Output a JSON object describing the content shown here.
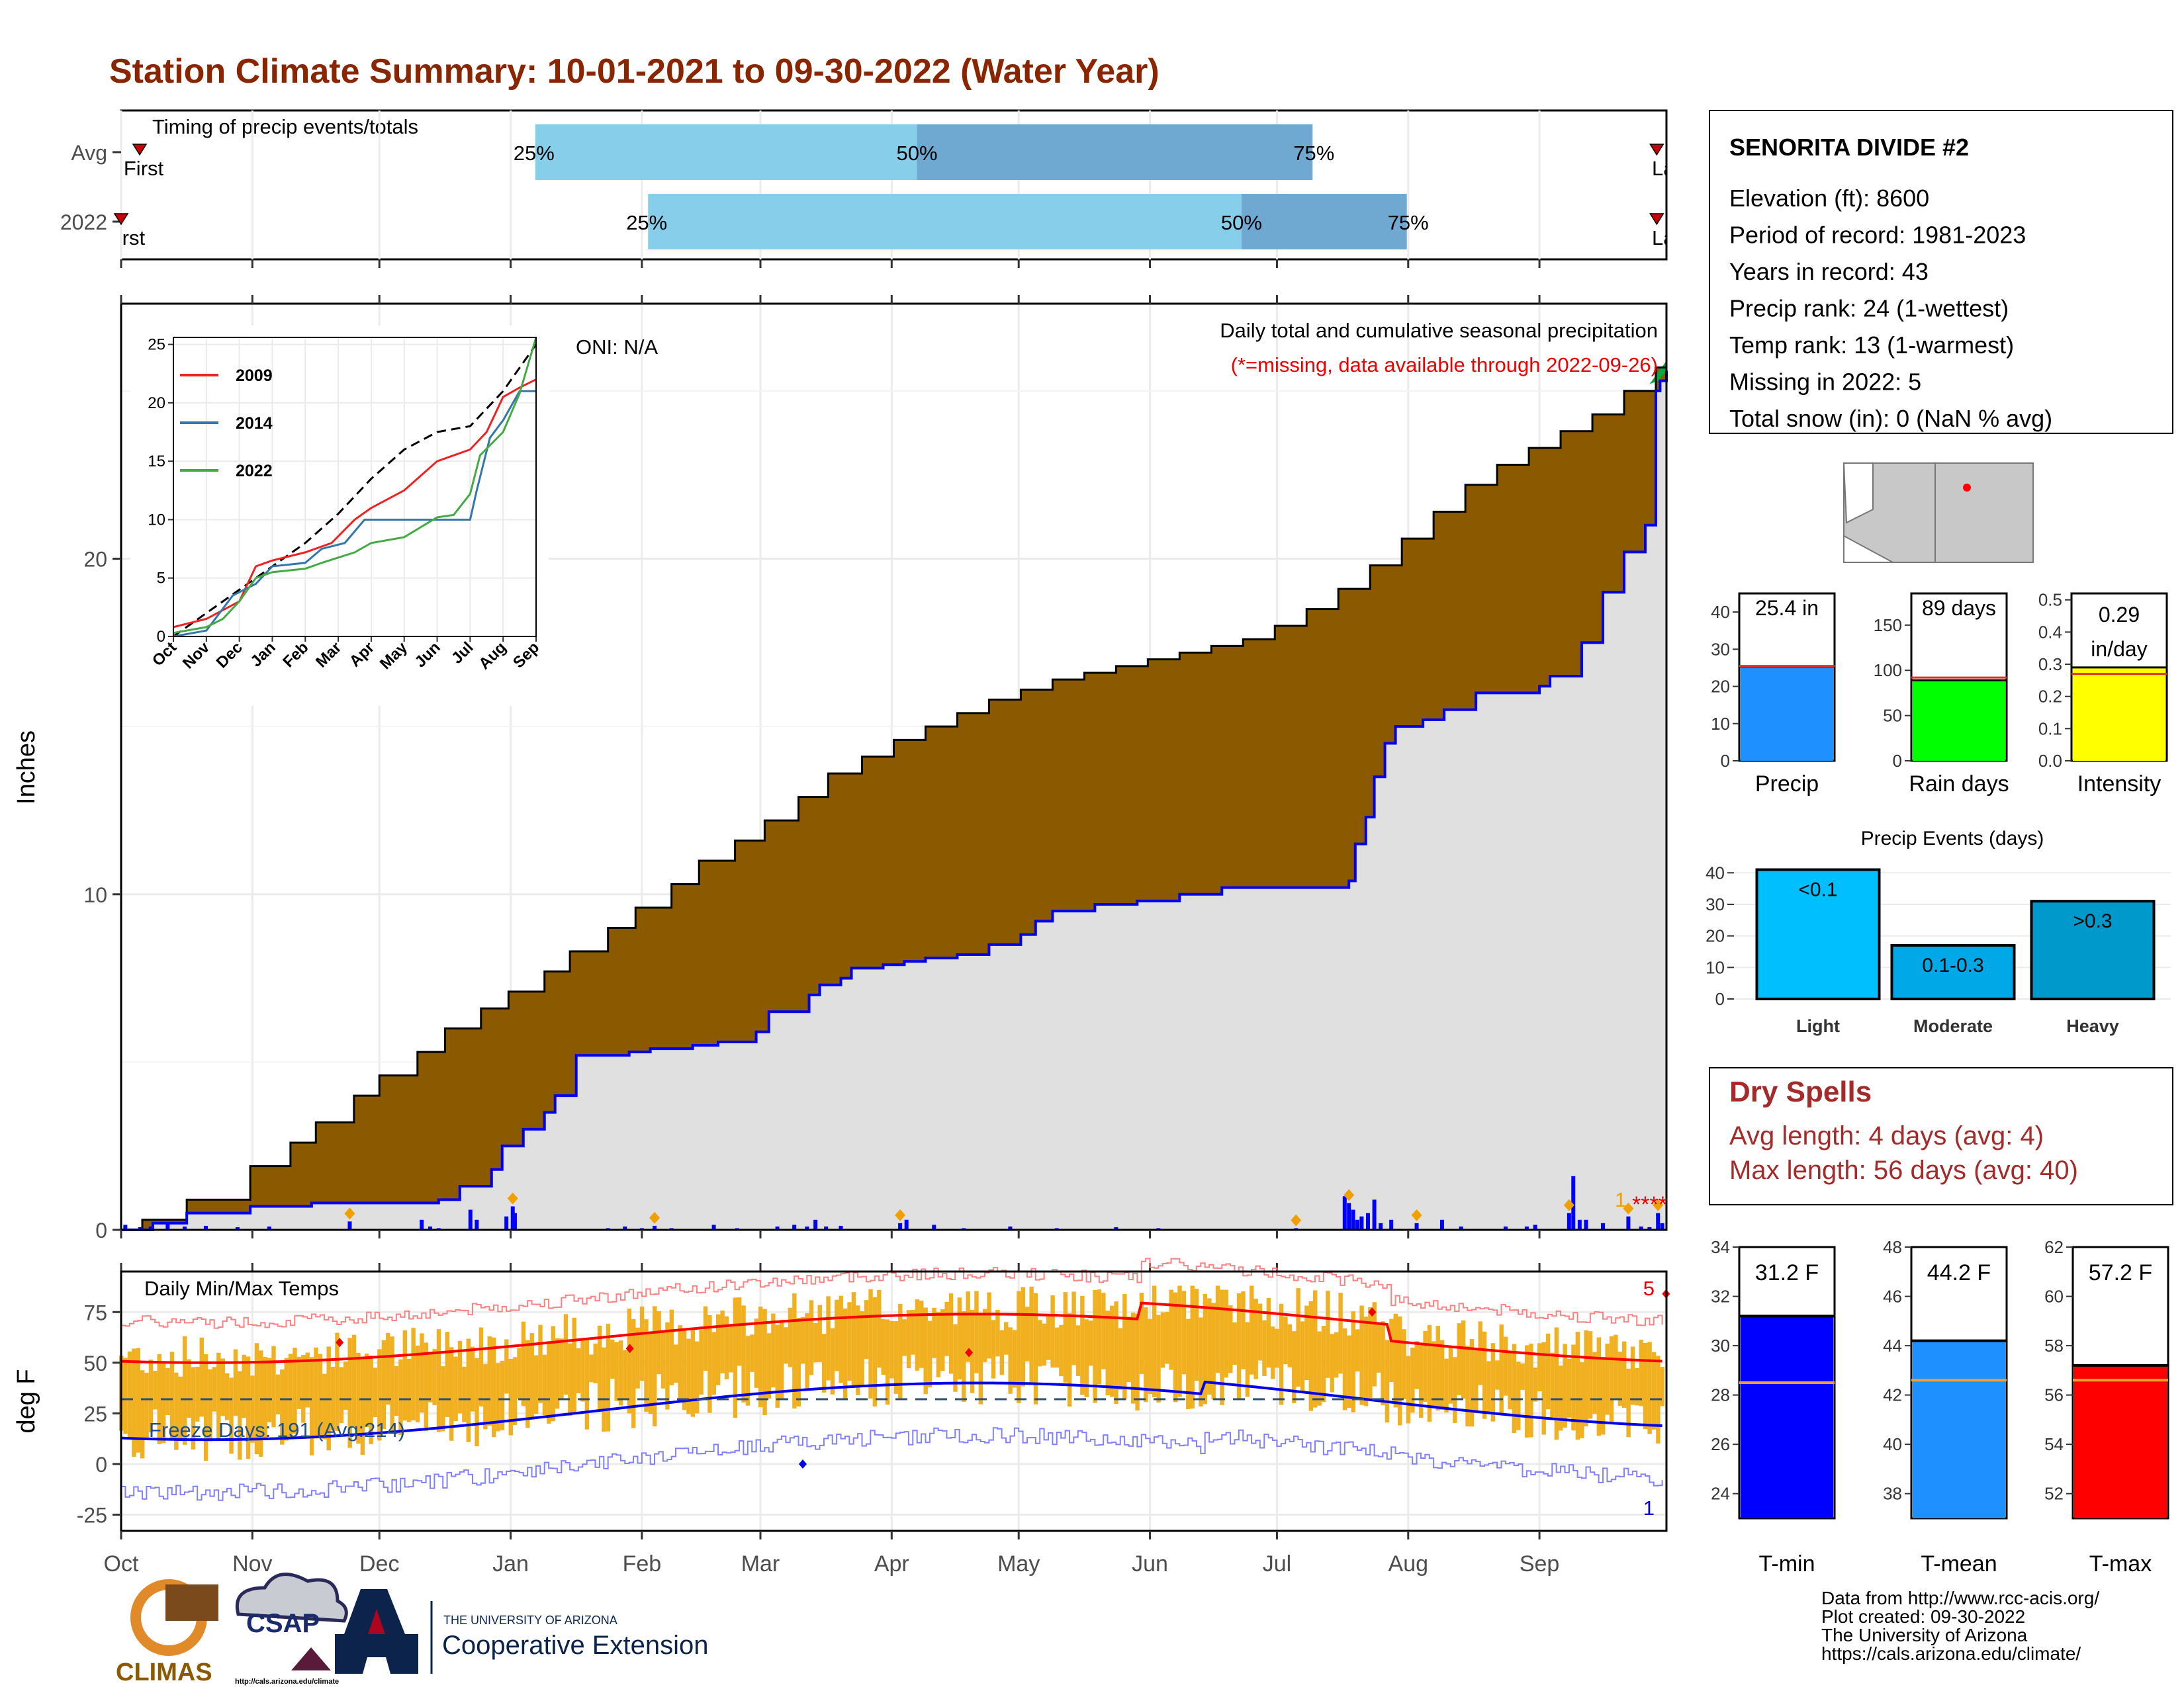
{
  "title": "Station Climate Summary: 10-01-2021 to 09-30-2022 (Water Year)",
  "colors": {
    "title": "#8b2500",
    "cum_avg": "#8b5a00",
    "cum_year": "#0000ee",
    "bg_fill": "#e0e0e0",
    "tmin": "#0000ff",
    "tmean": "#1e90ff",
    "tmax": "#ff0000",
    "precip": "#1e90ff",
    "raindays": "#00ff00",
    "intensity": "#ffff00",
    "light": "#00bfff",
    "moderate": "#00a7ee",
    "heavy": "#0099cc",
    "temp_bar": "#f0b020",
    "dry": "#a52a2a"
  },
  "timing": {
    "label": "Timing of precip events/totals",
    "rows": [
      {
        "name": "Avg",
        "first_label": "First",
        "last_label": "Last",
        "p25": "25%",
        "p50": "50%",
        "p75": "75%",
        "q25": 0.268,
        "q50": 0.515,
        "q75": 0.771,
        "first": 0.012,
        "last": 0.998
      },
      {
        "name": "2022",
        "first_label": "First",
        "last_label": "Last",
        "p25": "25%",
        "p50": "50%",
        "p75": "75%",
        "q25": 0.341,
        "q50": 0.725,
        "q75": 0.832,
        "first": 0.0,
        "last": 0.998
      }
    ]
  },
  "months": [
    "Oct",
    "Nov",
    "Dec",
    "Jan",
    "Feb",
    "Mar",
    "Apr",
    "May",
    "Jun",
    "Jul",
    "Aug",
    "Sep"
  ],
  "main": {
    "ylabel": "Inches",
    "yticks": [
      0,
      10,
      20
    ],
    "ylim": [
      0,
      27.6
    ],
    "oni": "ONI: N/A",
    "caption1": "Daily total and cumulative seasonal precipitation",
    "caption2": "(*=missing, data available through 2022-09-26)",
    "missing_count": "1",
    "missing_marks": "****"
  },
  "chart_data": {
    "type": "area",
    "x_unit": "day of water year (0 = Oct 1)",
    "cumulative_avg": [
      [
        0,
        0.0
      ],
      [
        10,
        0.3
      ],
      [
        31,
        0.9
      ],
      [
        61,
        1.9
      ],
      [
        80,
        2.6
      ],
      [
        92,
        3.2
      ],
      [
        110,
        4.0
      ],
      [
        122,
        4.6
      ],
      [
        140,
        5.3
      ],
      [
        153,
        6.0
      ],
      [
        170,
        6.6
      ],
      [
        183,
        7.1
      ],
      [
        200,
        7.7
      ],
      [
        212,
        8.3
      ],
      [
        230,
        9.0
      ],
      [
        243,
        9.6
      ],
      [
        260,
        10.3
      ],
      [
        273,
        11.0
      ],
      [
        290,
        11.6
      ],
      [
        304,
        12.2
      ],
      [
        320,
        12.9
      ],
      [
        334,
        13.6
      ],
      [
        350,
        14.1
      ],
      [
        365,
        14.6
      ],
      [
        380,
        15.0
      ],
      [
        395,
        15.4
      ],
      [
        410,
        15.8
      ],
      [
        425,
        16.1
      ],
      [
        440,
        16.4
      ],
      [
        455,
        16.6
      ],
      [
        470,
        16.8
      ],
      [
        485,
        17.0
      ],
      [
        500,
        17.2
      ],
      [
        515,
        17.4
      ],
      [
        530,
        17.6
      ],
      [
        545,
        18.0
      ],
      [
        560,
        18.5
      ],
      [
        575,
        19.1
      ],
      [
        590,
        19.8
      ],
      [
        605,
        20.6
      ],
      [
        620,
        21.4
      ],
      [
        635,
        22.2
      ],
      [
        650,
        22.8
      ],
      [
        665,
        23.3
      ],
      [
        680,
        23.8
      ],
      [
        695,
        24.3
      ],
      [
        710,
        25.0
      ],
      [
        725,
        25.7
      ],
      [
        730,
        25.9
      ]
    ],
    "cumulative_2022": [
      [
        0,
        0.0
      ],
      [
        15,
        0.2
      ],
      [
        31,
        0.5
      ],
      [
        61,
        0.7
      ],
      [
        90,
        0.8
      ],
      [
        120,
        0.8
      ],
      [
        150,
        0.9
      ],
      [
        160,
        1.3
      ],
      [
        168,
        1.3
      ],
      [
        175,
        1.8
      ],
      [
        180,
        2.5
      ],
      [
        190,
        3.0
      ],
      [
        200,
        3.5
      ],
      [
        205,
        4.0
      ],
      [
        215,
        5.2
      ],
      [
        240,
        5.3
      ],
      [
        250,
        5.4
      ],
      [
        270,
        5.5
      ],
      [
        282,
        5.6
      ],
      [
        300,
        5.9
      ],
      [
        306,
        6.5
      ],
      [
        325,
        7.0
      ],
      [
        330,
        7.3
      ],
      [
        340,
        7.5
      ],
      [
        345,
        7.8
      ],
      [
        360,
        7.9
      ],
      [
        370,
        8.0
      ],
      [
        380,
        8.1
      ],
      [
        395,
        8.2
      ],
      [
        410,
        8.5
      ],
      [
        425,
        8.8
      ],
      [
        432,
        9.2
      ],
      [
        440,
        9.5
      ],
      [
        460,
        9.7
      ],
      [
        480,
        9.8
      ],
      [
        500,
        10.0
      ],
      [
        520,
        10.2
      ],
      [
        540,
        10.2
      ],
      [
        570,
        10.2
      ],
      [
        580,
        10.4
      ],
      [
        583,
        11.5
      ],
      [
        588,
        12.3
      ],
      [
        592,
        13.5
      ],
      [
        597,
        14.5
      ],
      [
        602,
        15.0
      ],
      [
        615,
        15.2
      ],
      [
        625,
        15.5
      ],
      [
        640,
        16.0
      ],
      [
        670,
        16.2
      ],
      [
        675,
        16.5
      ],
      [
        690,
        17.5
      ],
      [
        700,
        19.0
      ],
      [
        710,
        20.2
      ],
      [
        720,
        21.0
      ],
      [
        725,
        25.0
      ],
      [
        727,
        25.3
      ],
      [
        730,
        25.6
      ]
    ],
    "daily_precip": [
      [
        2,
        0.15
      ],
      [
        9,
        0.08
      ],
      [
        14,
        0.1
      ],
      [
        22,
        0.18
      ],
      [
        30,
        0.1
      ],
      [
        40,
        0.12
      ],
      [
        55,
        0.08
      ],
      [
        70,
        0.1
      ],
      [
        108,
        0.25
      ],
      [
        142,
        0.3
      ],
      [
        146,
        0.1
      ],
      [
        150,
        0.05
      ],
      [
        165,
        0.6
      ],
      [
        168,
        0.3
      ],
      [
        182,
        0.4
      ],
      [
        186,
        0.5
      ],
      [
        185,
        0.7
      ],
      [
        230,
        0.05
      ],
      [
        238,
        0.1
      ],
      [
        246,
        0.05
      ],
      [
        252,
        0.12
      ],
      [
        260,
        0.05
      ],
      [
        280,
        0.15
      ],
      [
        291,
        0.05
      ],
      [
        310,
        0.1
      ],
      [
        318,
        0.15
      ],
      [
        324,
        0.1
      ],
      [
        328,
        0.3
      ],
      [
        333,
        0.1
      ],
      [
        340,
        0.12
      ],
      [
        368,
        0.2
      ],
      [
        371,
        0.3
      ],
      [
        384,
        0.15
      ],
      [
        398,
        0.05
      ],
      [
        420,
        0.1
      ],
      [
        442,
        0.05
      ],
      [
        470,
        0.08
      ],
      [
        490,
        0.05
      ],
      [
        555,
        0.05
      ],
      [
        578,
        1.0
      ],
      [
        580,
        0.8
      ],
      [
        582,
        0.6
      ],
      [
        584,
        0.3
      ],
      [
        586,
        0.4
      ],
      [
        589,
        0.5
      ],
      [
        592,
        0.9
      ],
      [
        595,
        0.2
      ],
      [
        600,
        0.3
      ],
      [
        612,
        0.2
      ],
      [
        624,
        0.3
      ],
      [
        633,
        0.1
      ],
      [
        654,
        0.1
      ],
      [
        664,
        0.1
      ],
      [
        668,
        0.15
      ],
      [
        684,
        0.5
      ],
      [
        686,
        1.6
      ],
      [
        689,
        0.3
      ],
      [
        692,
        0.3
      ],
      [
        700,
        0.2
      ],
      [
        712,
        0.4
      ],
      [
        718,
        0.1
      ],
      [
        722,
        0.08
      ],
      [
        726,
        0.5
      ],
      [
        728,
        0.2
      ]
    ],
    "events_marks": [
      110,
      185,
      250,
      365,
      555,
      580,
      615,
      685,
      715,
      726
    ],
    "ylim": [
      0,
      27.6
    ]
  },
  "inset": {
    "title": "",
    "yticks": [
      0,
      5,
      10,
      15,
      20,
      25
    ],
    "months": [
      "Oct",
      "Nov",
      "Dec",
      "Jan",
      "Feb",
      "Mar",
      "Apr",
      "May",
      "Jun",
      "Jul",
      "Aug",
      "Sep"
    ],
    "legend": [
      {
        "name": "2009",
        "color": "#ee2222"
      },
      {
        "name": "2014",
        "color": "#3377aa"
      },
      {
        "name": "2022",
        "color": "#44aa44"
      }
    ],
    "series": [
      {
        "name": "avg",
        "color": "#000",
        "dash": true,
        "pts": [
          [
            0,
            0
          ],
          [
            1,
            2
          ],
          [
            2,
            4
          ],
          [
            3,
            6
          ],
          [
            4,
            8
          ],
          [
            5,
            10.5
          ],
          [
            6,
            13.5
          ],
          [
            7,
            16
          ],
          [
            8,
            17.5
          ],
          [
            9,
            18
          ],
          [
            10,
            21
          ],
          [
            11,
            25
          ]
        ]
      },
      {
        "name": "2009",
        "color": "#ee2222",
        "pts": [
          [
            0,
            0.8
          ],
          [
            1,
            1.5
          ],
          [
            2,
            3
          ],
          [
            2.5,
            6
          ],
          [
            3,
            6.5
          ],
          [
            4,
            7.2
          ],
          [
            4.8,
            8
          ],
          [
            5.5,
            10
          ],
          [
            6,
            11
          ],
          [
            7,
            12.5
          ],
          [
            8,
            15
          ],
          [
            8.5,
            15.5
          ],
          [
            9,
            16
          ],
          [
            9.5,
            17.5
          ],
          [
            10,
            20.5
          ],
          [
            10.5,
            21.3
          ],
          [
            11,
            22
          ]
        ]
      },
      {
        "name": "2014",
        "color": "#3377aa",
        "pts": [
          [
            0,
            0
          ],
          [
            1,
            0.5
          ],
          [
            1.8,
            3.5
          ],
          [
            2.5,
            4.5
          ],
          [
            3,
            6
          ],
          [
            4,
            6.3
          ],
          [
            4.5,
            7.5
          ],
          [
            5.2,
            8.0
          ],
          [
            5.8,
            10.0
          ],
          [
            6,
            10.0
          ],
          [
            7,
            10.0
          ],
          [
            8,
            10.0
          ],
          [
            9,
            10.0
          ],
          [
            9.2,
            12.5
          ],
          [
            9.6,
            17
          ],
          [
            10,
            18.5
          ],
          [
            10.5,
            21
          ],
          [
            11,
            21
          ]
        ]
      },
      {
        "name": "2022",
        "color": "#44aa44",
        "pts": [
          [
            0,
            0.3
          ],
          [
            1,
            0.8
          ],
          [
            1.5,
            1.5
          ],
          [
            2,
            3
          ],
          [
            2.5,
            5
          ],
          [
            3,
            5.5
          ],
          [
            4,
            5.8
          ],
          [
            4.5,
            6.3
          ],
          [
            5.5,
            7.2
          ],
          [
            6,
            8.0
          ],
          [
            7,
            8.5
          ],
          [
            8,
            10.2
          ],
          [
            8.5,
            10.4
          ],
          [
            9,
            12.2
          ],
          [
            9.3,
            15.5
          ],
          [
            10,
            17.5
          ],
          [
            10.5,
            20.8
          ],
          [
            11,
            25.6
          ]
        ]
      }
    ]
  },
  "temps": {
    "ylabel": "deg F",
    "label": "Daily Min/Max Temps",
    "yticks": [
      -25,
      0,
      25,
      50,
      75
    ],
    "freeze": "Freeze Days: 191 (Avg:214)",
    "rec_high_count": "5",
    "rec_low_count": "1",
    "freeze_line": 32
  },
  "station": {
    "name": "SENORITA DIVIDE #2",
    "lines": [
      "Elevation (ft): 8600",
      "Period of record: 1981-2023",
      "Years in record: 43",
      "Precip rank: 24 (1-wettest)",
      "Temp rank: 13 (1-warmest)",
      "Missing in 2022: 5",
      "Total snow (in): 0 (NaN % avg)"
    ]
  },
  "summary_bars": [
    {
      "name": "Precip",
      "label": "25.4 in",
      "value": 25.4,
      "avg": 25.5,
      "ymax": 45,
      "ticks": [
        0,
        10,
        20,
        30,
        40
      ],
      "color": "#1e90ff"
    },
    {
      "name": "Rain days",
      "label": "89 days",
      "value": 89,
      "avg": 92,
      "ymax": 185,
      "ticks": [
        0,
        50,
        100,
        150
      ],
      "color": "#00ff00"
    },
    {
      "name": "Intensity",
      "label": "0.29",
      "label2": "in/day",
      "value": 0.29,
      "avg": 0.27,
      "ymax": 0.52,
      "ticks": [
        "0.0",
        "0.1",
        "0.2",
        "0.3",
        "0.4",
        "0.5"
      ],
      "tickvals": [
        0,
        0.1,
        0.2,
        0.3,
        0.4,
        0.5
      ],
      "color": "#ffff00"
    }
  ],
  "events": {
    "title": "Precip Events (days)",
    "ticks": [
      0,
      10,
      20,
      30,
      40
    ],
    "ymax": 43,
    "bars": [
      {
        "name": "Light",
        "label": "<0.1",
        "value": 41,
        "color": "#00bfff"
      },
      {
        "name": "Moderate",
        "label": "0.1-0.3",
        "value": 17,
        "color": "#00a8e8"
      },
      {
        "name": "Heavy",
        "label": ">0.3",
        "value": 31,
        "color": "#0099cc"
      }
    ]
  },
  "dry": {
    "title": "Dry Spells",
    "avg": "Avg length: 4 days (avg: 4)",
    "max": "Max length: 56 days (avg: 40)"
  },
  "temp_bars": [
    {
      "name": "T-min",
      "label": "31.2 F",
      "value": 31.2,
      "avg": 28.5,
      "min": 23,
      "max": 34,
      "ticks": [
        24,
        26,
        28,
        30,
        32,
        34
      ],
      "color": "#0000ff"
    },
    {
      "name": "T-mean",
      "label": "44.2 F",
      "value": 44.2,
      "avg": 42.6,
      "min": 37,
      "max": 48,
      "ticks": [
        38,
        40,
        42,
        44,
        46,
        48
      ],
      "color": "#1e90ff"
    },
    {
      "name": "T-max",
      "label": "57.2 F",
      "value": 57.2,
      "avg": 56.6,
      "min": 51,
      "max": 62,
      "ticks": [
        52,
        54,
        56,
        58,
        60,
        62
      ],
      "color": "#ff0000"
    }
  ],
  "footer": {
    "lines": [
      "Data from http://www.rcc-acis.org/",
      "Plot created: 09-30-2022",
      "The University of Arizona",
      "https://cals.arizona.edu/climate/"
    ],
    "climas": "CLIMAS",
    "csap": "CSAP",
    "csap_url": "http://cals.arizona.edu/climate",
    "ua_small": "THE UNIVERSITY OF ARIZONA",
    "ua_big": "Cooperative Extension"
  }
}
